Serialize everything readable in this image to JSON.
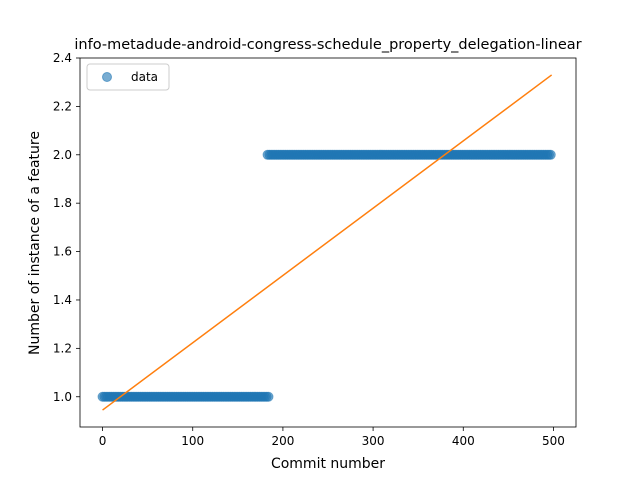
{
  "chart_data": {
    "type": "scatter",
    "title": "info-metadude-android-congress-schedule_property_delegation-linear",
    "xlabel": "Commit number",
    "ylabel": "Number of instance of a feature",
    "xlim": [
      -25,
      525
    ],
    "ylim": [
      0.875,
      2.4
    ],
    "xticks": [
      0,
      100,
      200,
      300,
      400,
      500
    ],
    "yticks": [
      1.0,
      1.2,
      1.4,
      1.6,
      1.8,
      2.0,
      2.2,
      2.4
    ],
    "grid": false,
    "legend": {
      "placement": "top-left",
      "entries": [
        "data"
      ]
    },
    "series": [
      {
        "name": "data",
        "kind": "scatter",
        "color": "#1f77b4",
        "segments": [
          {
            "x_start": 0,
            "x_end": 184,
            "y": 1.0
          },
          {
            "x_start": 183,
            "x_end": 498,
            "y": 2.0
          }
        ]
      },
      {
        "kind": "line",
        "color": "#ff7f0e",
        "x": [
          0,
          498
        ],
        "y": [
          0.945,
          2.33
        ]
      }
    ]
  }
}
